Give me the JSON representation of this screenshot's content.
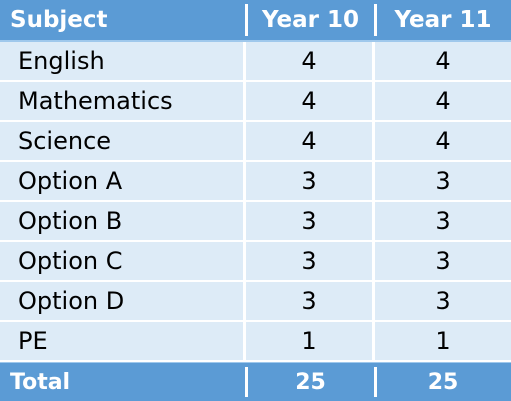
{
  "table": {
    "headers": [
      "Subject",
      "Year 10",
      "Year 11"
    ],
    "rows": [
      [
        "English",
        "4",
        "4"
      ],
      [
        "Mathematics",
        "4",
        "4"
      ],
      [
        "Science",
        "4",
        "4"
      ],
      [
        "Option A",
        "3",
        "3"
      ],
      [
        "Option B",
        "3",
        "3"
      ],
      [
        "Option C",
        "3",
        "3"
      ],
      [
        "Option D",
        "3",
        "3"
      ],
      [
        "PE",
        "1",
        "1"
      ]
    ],
    "total": [
      "Total",
      "25",
      "25"
    ]
  },
  "colors": {
    "header_bg": "#5b9bd5",
    "row_bg": "#ddebf7",
    "grid": "#ffffff"
  }
}
